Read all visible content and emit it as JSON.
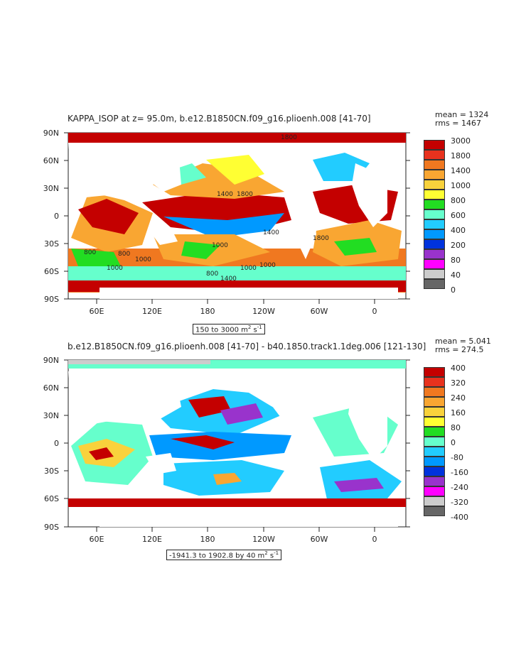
{
  "maps": [
    {
      "title": "KAPPA_ISOP at z=  95.0m, b.e12.B1850CN.f09_g16.plioenh.008 [41-70]",
      "stats": [
        "mean = 1324",
        "rms = 1467"
      ],
      "range_label_prefix": "150 to 3000 m",
      "range_label_units": "s",
      "lat_labels": [
        "90N",
        "60N",
        "30N",
        "0",
        "30S",
        "60S",
        "90S"
      ],
      "lon_labels": [
        "60E",
        "120E",
        "180",
        "120W",
        "60W",
        "0"
      ],
      "colorbar_labels": [
        "3000",
        "1800",
        "1400",
        "1000",
        "800",
        "600",
        "400",
        "200",
        "80",
        "40",
        "0"
      ],
      "colorbar_colors": [
        "#c40000",
        "#e8321e",
        "#f07820",
        "#f9a632",
        "#f9d23c",
        "#ffff33",
        "#22dd22",
        "#66ffcc",
        "#22ccff",
        "#0099ff",
        "#0033dd",
        "#9933cc",
        "#ff00ff",
        "#cccccc",
        "#666666"
      ],
      "contour_labels": [
        "1800",
        "1400",
        "1800",
        "1000",
        "800",
        "800",
        "1000",
        "1000",
        "1000",
        "1000",
        "800",
        "1400",
        "1400",
        "1800"
      ]
    },
    {
      "title": "b.e12.B1850CN.f09_g16.plioenh.008 [41-70] - b40.1850.track1.1deg.006 [121-130]",
      "stats": [
        "mean = 5.041",
        "rms = 274.5"
      ],
      "range_label_prefix": "-1941.3 to 1902.8 by 40 m",
      "range_label_units": "s",
      "lat_labels": [
        "90N",
        "60N",
        "30N",
        "0",
        "30S",
        "60S",
        "90S"
      ],
      "lon_labels": [
        "60E",
        "120E",
        "180",
        "120W",
        "60W",
        "0"
      ],
      "colorbar_labels": [
        "400",
        "320",
        "240",
        "160",
        "80",
        "0",
        "-80",
        "-160",
        "-240",
        "-320",
        "-400"
      ],
      "colorbar_colors": [
        "#c40000",
        "#e8321e",
        "#f07820",
        "#f9a632",
        "#f9d23c",
        "#ffff33",
        "#22dd22",
        "#66ffcc",
        "#22ccff",
        "#0099ff",
        "#0033dd",
        "#9933cc",
        "#ff00ff",
        "#cccccc",
        "#666666"
      ]
    }
  ]
}
